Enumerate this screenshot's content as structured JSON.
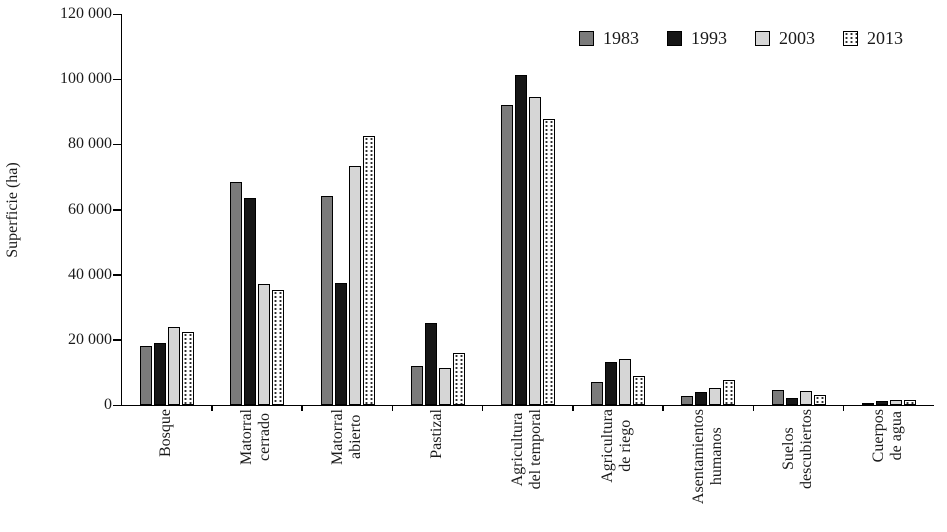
{
  "chart_data": {
    "type": "bar",
    "title": "",
    "ylabel": "Superficie (ha)",
    "xlabel": "",
    "ylim": [
      0,
      120000
    ],
    "ytick_step": 20000,
    "yticks": [
      "0",
      "20 000",
      "40 000",
      "60 000",
      "80 000",
      "100 000",
      "120 000"
    ],
    "grid": false,
    "legend_position": "top-right-inside",
    "categories": [
      "Bosque",
      "Matorral\ncerrado",
      "Matorral\nabierto",
      "Pastizal",
      "Agricultura\ndel temporal",
      "Agricultura\nde riego",
      "Asentamientos\nhumanos",
      "Suelos\ndescubiertos",
      "Cuerpos\nde agua"
    ],
    "series": [
      {
        "name": "1983",
        "color": "#7b7b7b",
        "pattern": "solid",
        "values": [
          18100,
          68500,
          64000,
          12000,
          92000,
          7100,
          2800,
          4600,
          600
        ]
      },
      {
        "name": "1993",
        "color": "#161616",
        "pattern": "solid",
        "values": [
          19000,
          63500,
          37500,
          25200,
          101300,
          13200,
          4000,
          2100,
          1200
        ]
      },
      {
        "name": "2003",
        "color": "#d6d6d6",
        "pattern": "solid",
        "values": [
          23900,
          37000,
          73300,
          11400,
          94500,
          14100,
          5200,
          4300,
          1500
        ]
      },
      {
        "name": "2013",
        "color": "#ffffff",
        "pattern": "dots",
        "values": [
          22400,
          35300,
          82500,
          16000,
          87700,
          8900,
          7700,
          3100,
          1500
        ]
      }
    ]
  }
}
